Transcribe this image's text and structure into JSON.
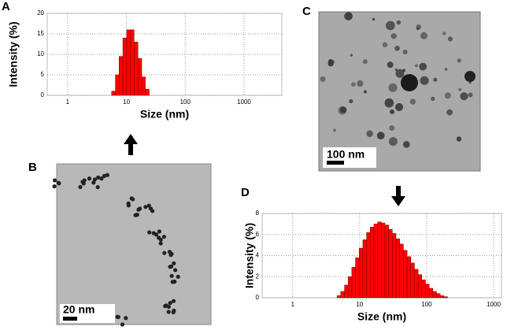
{
  "panel_labels": [
    "A",
    "B",
    "C",
    "D"
  ],
  "scale_bars": [
    "20 nm",
    "100 nm"
  ],
  "chart_data": [
    {
      "type": "histogram",
      "x_label": "Size (nm)",
      "y_label": "Intensity (%)",
      "color": "#ff0000",
      "xscale": "log",
      "grid": true,
      "bins": [
        5.6,
        6.5,
        7.5,
        8.7,
        10.1,
        11.7,
        13.5,
        15.7,
        18.2,
        21,
        24.4
      ],
      "values": [
        1,
        5,
        9.5,
        14,
        16,
        16,
        13,
        9,
        4.5,
        1.5
      ],
      "xlim": [
        0.45,
        4400
      ],
      "xticks": [
        1,
        10,
        100,
        1000
      ],
      "ylim": [
        0,
        20
      ],
      "yticks": [
        0,
        5,
        10,
        15,
        20
      ]
    },
    {
      "type": "histogram",
      "x_label": "Size (nm)",
      "y_label": "Intensity (%)",
      "color": "#ff0000",
      "xscale": "log",
      "grid": true,
      "bins": [
        4.6,
        5.22,
        5.93,
        6.73,
        7.63,
        8.66,
        9.83,
        11.16,
        12.67,
        14.38,
        16.32,
        18.52,
        21.02,
        23.86,
        27.08,
        30.74,
        34.89,
        39.6,
        44.95,
        51.01,
        57.9,
        65.72,
        74.59,
        84.66,
        96.09,
        109.06,
        123.78,
        140.49,
        159.46,
        180.99,
        205.42
      ],
      "values": [
        0.2,
        0.6,
        1.2,
        2.0,
        2.9,
        3.8,
        4.7,
        5.5,
        6.2,
        6.7,
        7.0,
        7.2,
        7.1,
        6.9,
        6.5,
        6.1,
        5.6,
        5.1,
        4.5,
        3.9,
        3.3,
        2.7,
        2.2,
        1.7,
        1.3,
        0.9,
        0.6,
        0.4,
        0.2,
        0.1
      ],
      "xlim": [
        0.35,
        1310
      ],
      "xticks": [
        1,
        10,
        100,
        1000
      ],
      "ylim": [
        0,
        8
      ],
      "yticks": [
        0,
        2,
        4,
        6,
        8
      ]
    }
  ]
}
